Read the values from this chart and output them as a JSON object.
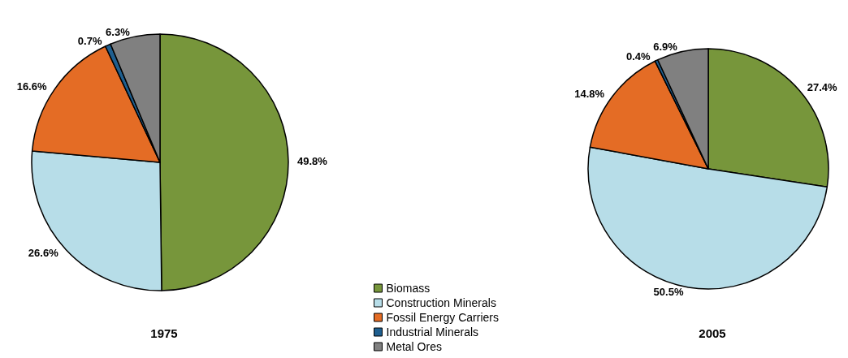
{
  "chart_data": {
    "type": "pie",
    "categories": [
      "Biomass",
      "Construction Minerals",
      "Fossil Energy Carriers",
      "Industrial Minerals",
      "Metal Ores"
    ],
    "colors": [
      "#77963b",
      "#b7dde8",
      "#e46c25",
      "#1f5f8f",
      "#808080"
    ],
    "legend": "bottom",
    "series": [
      {
        "name": "1975",
        "values": [
          49.8,
          26.6,
          16.6,
          0.7,
          6.3
        ],
        "value_labels": [
          "49.8%",
          "26.6%",
          "16.6%",
          "0.7%",
          "6.3%"
        ]
      },
      {
        "name": "2005",
        "values": [
          27.4,
          50.5,
          14.8,
          0.4,
          6.9
        ],
        "value_labels": [
          "27.4%",
          "50.5%",
          "14.8%",
          "0.4%",
          "6.9%"
        ]
      }
    ]
  }
}
